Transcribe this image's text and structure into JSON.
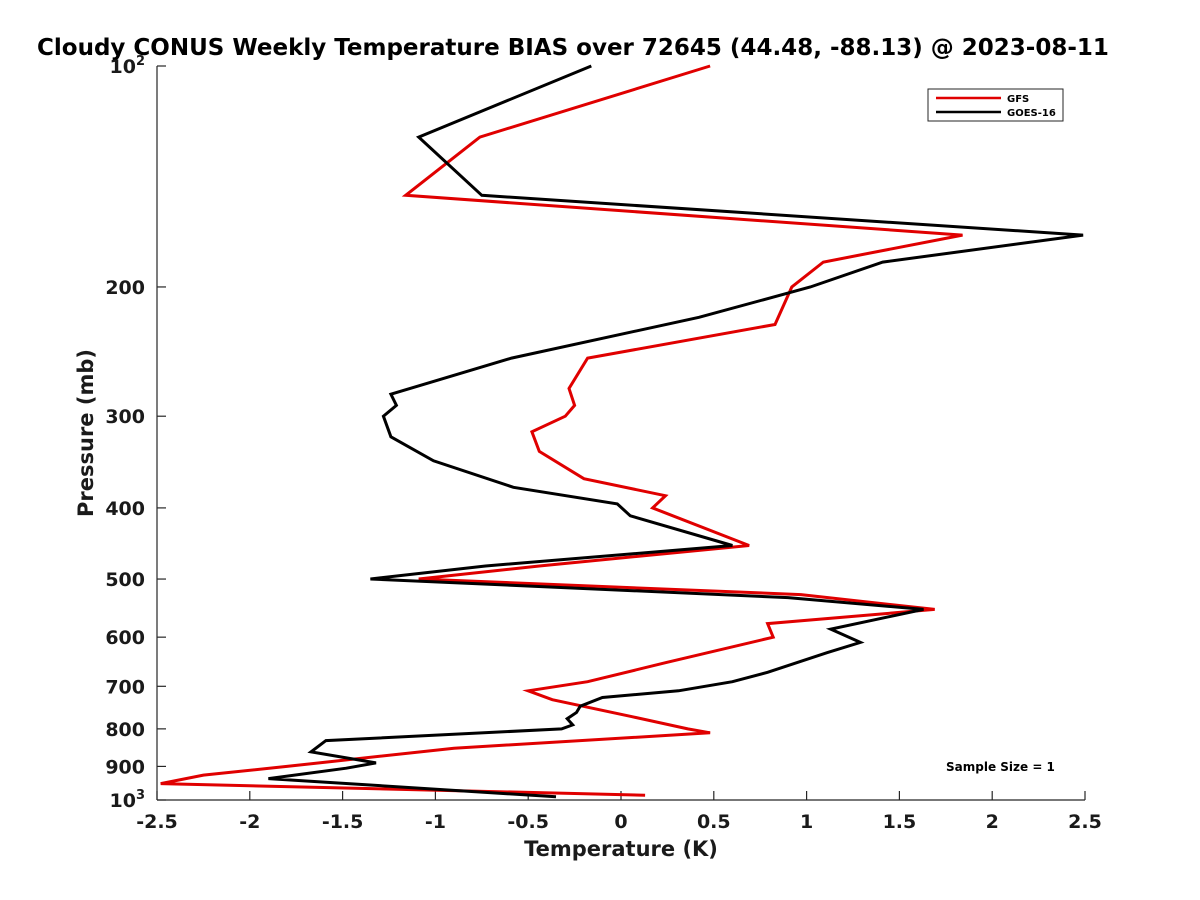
{
  "chart_data": {
    "type": "line",
    "title": "Cloudy CONUS Weekly Temperature BIAS over 72645 (44.48, -88.13) @ 2023-08-11",
    "xlabel": "Temperature (K)",
    "ylabel": "Pressure (mb)",
    "xlim": [
      -2.5,
      2.5
    ],
    "ylim": [
      100,
      1000
    ],
    "yscale": "log",
    "y_reversed": true,
    "grid": false,
    "legend_position": "top-right",
    "x_ticks": [
      -2.5,
      -2,
      -1.5,
      -1,
      -0.5,
      0,
      0.5,
      1,
      1.5,
      2,
      2.5
    ],
    "x_tick_labels": [
      "-2.5",
      "-2",
      "-1.5",
      "-1",
      "-0.5",
      "0",
      "0.5",
      "1",
      "1.5",
      "2",
      "2.5"
    ],
    "y_ticks": [
      100,
      200,
      300,
      400,
      500,
      600,
      700,
      800,
      900,
      1000
    ],
    "y_tick_labels": [
      {
        "text": "10",
        "sup": "2"
      },
      {
        "text": "200",
        "sup": ""
      },
      {
        "text": "300",
        "sup": ""
      },
      {
        "text": "400",
        "sup": ""
      },
      {
        "text": "500",
        "sup": ""
      },
      {
        "text": "600",
        "sup": ""
      },
      {
        "text": "700",
        "sup": ""
      },
      {
        "text": "800",
        "sup": ""
      },
      {
        "text": "900",
        "sup": ""
      },
      {
        "text": "10",
        "sup": "3"
      }
    ],
    "series": [
      {
        "name": "GFS",
        "color": "#e00000",
        "points": [
          [
            0.48,
            100
          ],
          [
            -0.76,
            125
          ],
          [
            -1.16,
            150
          ],
          [
            1.84,
            170
          ],
          [
            1.09,
            185
          ],
          [
            0.92,
            200
          ],
          [
            0.83,
            225
          ],
          [
            -0.18,
            250
          ],
          [
            -0.28,
            275
          ],
          [
            -0.25,
            290
          ],
          [
            -0.3,
            300
          ],
          [
            -0.48,
            315
          ],
          [
            -0.44,
            335
          ],
          [
            -0.2,
            365
          ],
          [
            0.24,
            385
          ],
          [
            0.17,
            400
          ],
          [
            0.69,
            450
          ],
          [
            -0.44,
            480
          ],
          [
            -1.09,
            500
          ],
          [
            0.97,
            525
          ],
          [
            1.69,
            550
          ],
          [
            0.79,
            575
          ],
          [
            0.82,
            600
          ],
          [
            0.24,
            650
          ],
          [
            -0.18,
            690
          ],
          [
            -0.5,
            710
          ],
          [
            -0.37,
            730
          ],
          [
            0.06,
            770
          ],
          [
            0.36,
            800
          ],
          [
            0.48,
            810
          ],
          [
            -0.9,
            850
          ],
          [
            -1.8,
            900
          ],
          [
            -2.25,
            925
          ],
          [
            -2.48,
            950
          ],
          [
            0.13,
            985
          ]
        ]
      },
      {
        "name": "GOES-16",
        "color": "#000000",
        "points": [
          [
            -0.16,
            100
          ],
          [
            -1.09,
            125
          ],
          [
            -0.75,
            150
          ],
          [
            2.49,
            170
          ],
          [
            1.41,
            185
          ],
          [
            1.02,
            200
          ],
          [
            0.42,
            220
          ],
          [
            -0.59,
            250
          ],
          [
            -1.24,
            280
          ],
          [
            -1.21,
            290
          ],
          [
            -1.28,
            300
          ],
          [
            -1.24,
            320
          ],
          [
            -1.01,
            345
          ],
          [
            -0.58,
            375
          ],
          [
            -0.02,
            395
          ],
          [
            0.05,
            410
          ],
          [
            0.6,
            450
          ],
          [
            -0.73,
            480
          ],
          [
            -1.35,
            500
          ],
          [
            0.9,
            530
          ],
          [
            1.63,
            550
          ],
          [
            1.13,
            585
          ],
          [
            1.29,
            610
          ],
          [
            1.11,
            630
          ],
          [
            0.79,
            670
          ],
          [
            0.6,
            690
          ],
          [
            0.31,
            710
          ],
          [
            -0.1,
            725
          ],
          [
            -0.22,
            745
          ],
          [
            -0.24,
            760
          ],
          [
            -0.29,
            775
          ],
          [
            -0.26,
            790
          ],
          [
            -0.32,
            800
          ],
          [
            -1.59,
            830
          ],
          [
            -1.67,
            860
          ],
          [
            -1.32,
            890
          ],
          [
            -1.48,
            905
          ],
          [
            -1.9,
            935
          ],
          [
            -0.35,
            990
          ]
        ]
      }
    ],
    "annotations": [
      "Sample Size = 1"
    ]
  }
}
